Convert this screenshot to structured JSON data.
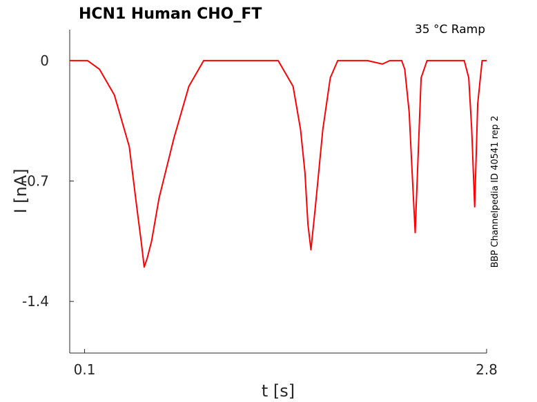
{
  "chart_data": {
    "type": "line",
    "title": "HCN1  Human  CHO_FT",
    "condition": "35 °C  Ramp",
    "side_label": "BBP Channelpedia ID 40541 rep 2",
    "xlabel": "t [s]",
    "ylabel": "I [nA]",
    "xlim": [
      0.0,
      2.8
    ],
    "ylim": [
      -1.7,
      0.18
    ],
    "xticks": [
      {
        "value": 0.1,
        "label": "0.1"
      },
      {
        "value": 2.8,
        "label": "2.8"
      }
    ],
    "yticks": [
      {
        "value": 0,
        "label": "0"
      },
      {
        "value": -0.7,
        "label": "-0.7"
      },
      {
        "value": -1.4,
        "label": "-1.4"
      }
    ],
    "grid": false,
    "series": [
      {
        "color": "#ff0000",
        "x": [
          0.0,
          0.1,
          0.12,
          0.2,
          0.3,
          0.4,
          0.45,
          0.48,
          0.5,
          0.52,
          0.55,
          0.6,
          0.7,
          0.8,
          0.9,
          0.95,
          1.0,
          1.1,
          1.2,
          1.3,
          1.4,
          1.5,
          1.55,
          1.58,
          1.6,
          1.62,
          1.65,
          1.7,
          1.75,
          1.8,
          1.9,
          2.0,
          2.1,
          2.15,
          2.2,
          2.23,
          2.25,
          2.28,
          2.3,
          2.32,
          2.34,
          2.36,
          2.4,
          2.5,
          2.6,
          2.65,
          2.68,
          2.7,
          2.72,
          2.74,
          2.77,
          2.8
        ],
        "y": [
          0.0,
          0.0,
          0.0,
          -0.05,
          -0.2,
          -0.5,
          -0.85,
          -1.05,
          -1.2,
          -1.15,
          -1.05,
          -0.8,
          -0.45,
          -0.15,
          0.0,
          0.0,
          0.0,
          0.0,
          0.0,
          0.0,
          0.0,
          -0.15,
          -0.4,
          -0.65,
          -0.95,
          -1.1,
          -0.85,
          -0.4,
          -0.1,
          0.0,
          0.0,
          0.0,
          -0.02,
          0.0,
          0.0,
          0.0,
          -0.05,
          -0.3,
          -0.65,
          -1.0,
          -0.55,
          -0.1,
          0.0,
          0.0,
          0.0,
          0.0,
          -0.1,
          -0.4,
          -0.85,
          -0.25,
          0.0,
          0.0
        ]
      }
    ]
  }
}
